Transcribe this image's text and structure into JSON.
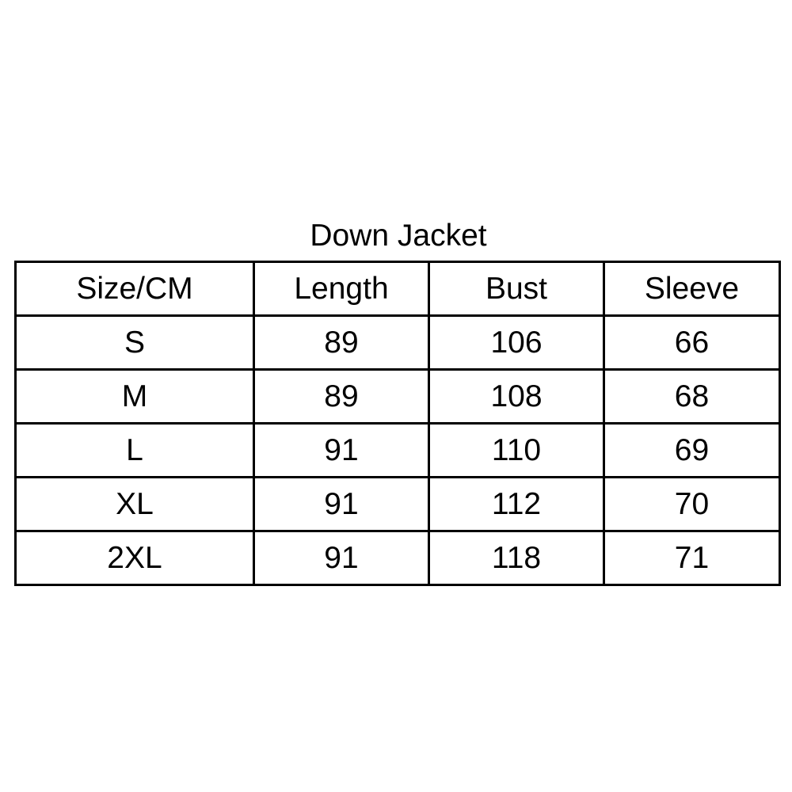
{
  "title": "Down Jacket",
  "table": {
    "headers": [
      "Size/CM",
      "Length",
      "Bust",
      "Sleeve"
    ],
    "rows": [
      [
        "S",
        "89",
        "106",
        "66"
      ],
      [
        "M",
        "89",
        "108",
        "68"
      ],
      [
        "L",
        "91",
        "110",
        "69"
      ],
      [
        "XL",
        "91",
        "112",
        "70"
      ],
      [
        "2XL",
        "91",
        "118",
        "71"
      ]
    ]
  }
}
